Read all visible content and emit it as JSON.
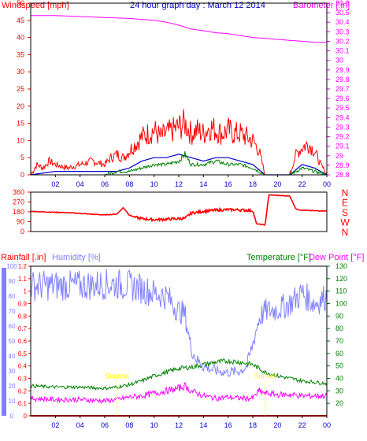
{
  "colors": {
    "frame": "#000000",
    "wind": "#ff0000",
    "windAvg": "#0000cc",
    "gust": "#008000",
    "baro": "#ff00ff",
    "direction": "#ff0000",
    "humidity": "#8080ff",
    "temperature": "#008000",
    "dewpoint": "#ff00ff",
    "rain": "#ff0000",
    "sun": "#ffff00",
    "title": "#0000cc"
  },
  "chart_data": [
    {
      "type": "line",
      "panel": "wind-baro",
      "title": "24 hour graph day : March 12 2014",
      "left_axis_label": "Windspeed [mph]",
      "right_axis_label": "Barometer [.in]",
      "left_ticks": [
        "0",
        "5",
        "10",
        "15",
        "20",
        "25",
        "30",
        "35",
        "40",
        "45",
        "50"
      ],
      "left_range": [
        0,
        50
      ],
      "right_ticks": [
        "28.8",
        "28.9",
        "29",
        "29.1",
        "29.2",
        "29.3",
        "29.4",
        "29.5",
        "29.6",
        "29.7",
        "29.8",
        "29.9",
        "30",
        "30.1",
        "30.2",
        "30.3",
        "30.4",
        "30.5",
        "30.6"
      ],
      "right_range": [
        28.8,
        30.6
      ],
      "x_ticks": [
        "02",
        "04",
        "06",
        "08",
        "10",
        "12",
        "14",
        "16",
        "18",
        "20",
        "22",
        "00"
      ],
      "x_range": [
        0,
        24
      ],
      "series": [
        {
          "role": "barometer",
          "axis": "right",
          "x": [
            0,
            2,
            4,
            6,
            8,
            9,
            10,
            11,
            12,
            13,
            14,
            15,
            16,
            17,
            18,
            19,
            20,
            21,
            22,
            23,
            24
          ],
          "y": [
            30.47,
            30.47,
            30.46,
            30.45,
            30.44,
            30.43,
            30.42,
            30.4,
            30.37,
            30.33,
            30.31,
            30.29,
            30.28,
            30.26,
            30.24,
            30.23,
            30.22,
            30.21,
            30.2,
            30.19,
            30.19
          ]
        },
        {
          "role": "wind-peak",
          "axis": "left",
          "x": [
            0,
            0.5,
            1,
            1.5,
            2,
            3,
            4,
            5,
            6,
            6.5,
            7,
            7.5,
            8,
            8.5,
            9,
            9.5,
            10,
            10.5,
            11,
            11.5,
            12,
            12.5,
            13,
            13.5,
            14,
            14.5,
            15,
            15.5,
            16,
            16.5,
            17,
            17.5,
            18,
            18.5,
            19,
            20,
            21,
            21.5,
            22,
            22.5,
            23,
            23.5,
            24
          ],
          "y": [
            0,
            3,
            2,
            4,
            3,
            2,
            3,
            4,
            3,
            5,
            6,
            5,
            7,
            9,
            11,
            12,
            13,
            11,
            12,
            13,
            14,
            15,
            12,
            13,
            12,
            14,
            13,
            12,
            13,
            12,
            12,
            11,
            10,
            7,
            0,
            0,
            0,
            6,
            8,
            9,
            7,
            3,
            0
          ]
        },
        {
          "role": "wind-average",
          "axis": "left",
          "x": [
            0,
            2,
            4,
            6,
            7,
            8,
            9,
            10,
            11,
            12,
            13,
            14,
            15,
            16,
            17,
            18,
            19,
            20,
            21,
            22,
            23,
            24
          ],
          "y": [
            0,
            1,
            1,
            1,
            1,
            2,
            4,
            5,
            5,
            6,
            5,
            4,
            5,
            5,
            4,
            3,
            0,
            0,
            0,
            3,
            2,
            0
          ]
        },
        {
          "role": "wind-gust",
          "axis": "left",
          "x": [
            0,
            2,
            4,
            6,
            7,
            8,
            9,
            10,
            11,
            12,
            12.5,
            13,
            14,
            15,
            16,
            17,
            18,
            19,
            20,
            21,
            22,
            23,
            24
          ],
          "y": [
            0,
            0,
            0,
            0,
            1,
            1,
            2,
            3,
            3,
            4,
            6,
            3,
            3,
            4,
            3,
            3,
            2,
            0,
            0,
            0,
            2,
            1,
            0
          ]
        }
      ]
    },
    {
      "type": "line",
      "panel": "direction",
      "left_ticks": [
        "0",
        "90",
        "180",
        "270",
        "360"
      ],
      "left_range": [
        0,
        360
      ],
      "right_ticks": [
        "N",
        "W",
        "S",
        "E",
        "N"
      ],
      "x_range": [
        0,
        24
      ],
      "series": [
        {
          "role": "wind-direction",
          "x": [
            0,
            1,
            2,
            3,
            4,
            5,
            6,
            7,
            7.2,
            7.5,
            8,
            8.5,
            9,
            10,
            11,
            12,
            12.5,
            13,
            14,
            15,
            16,
            17,
            18,
            18.3,
            19,
            19.3,
            20,
            21,
            21.5,
            22,
            23,
            24
          ],
          "y": [
            185,
            180,
            176,
            172,
            166,
            158,
            152,
            160,
            185,
            218,
            150,
            130,
            118,
            108,
            112,
            118,
            120,
            168,
            185,
            195,
            200,
            198,
            190,
            70,
            60,
            335,
            330,
            325,
            205,
            195,
            190,
            188
          ]
        }
      ]
    },
    {
      "type": "line",
      "panel": "rain-humidity-temp",
      "left_axis_label": "Rainfall [.in]",
      "left2_axis_label": "Humidity [%]",
      "right_axis_label": "Temperature [°F]",
      "right2_axis_label": "Dew Point [°F]",
      "rain_ticks": [
        "0",
        "0.1",
        "0.2",
        "0.3",
        "0.4",
        "0.5",
        "0.6",
        "0.7",
        "0.8",
        "0.9",
        "1",
        "1.1",
        "1.2"
      ],
      "rain_range": [
        0,
        1.2
      ],
      "humidity_ticks": [
        "0",
        "10",
        "20",
        "30",
        "40",
        "50",
        "60",
        "70",
        "80",
        "90",
        "100"
      ],
      "humidity_range": [
        0,
        100
      ],
      "temp_ticks": [
        "20",
        "30",
        "40",
        "50",
        "60",
        "70",
        "80",
        "90",
        "100",
        "110",
        "120",
        "130"
      ],
      "temp_range": [
        10,
        130
      ],
      "x_ticks": [
        "02",
        "04",
        "06",
        "08",
        "10",
        "12",
        "14",
        "16",
        "18",
        "20",
        "22",
        "00"
      ],
      "x_range": [
        0,
        24
      ],
      "annotations": [
        {
          "text": "Sunrise",
          "x": 7.0
        },
        {
          "text": "Sunset",
          "x": 19.0
        }
      ],
      "series": [
        {
          "role": "humidity",
          "axis": "humidity",
          "x": [
            0,
            2,
            4,
            6,
            7,
            8,
            9,
            10,
            11,
            12,
            12.5,
            13,
            13.5,
            14,
            15,
            16,
            17,
            17.5,
            18,
            18.5,
            19,
            20,
            21,
            22,
            23,
            24
          ],
          "y": [
            87,
            87,
            87,
            88,
            88,
            87,
            85,
            82,
            80,
            70,
            68,
            45,
            37,
            33,
            30,
            29,
            30,
            33,
            48,
            65,
            70,
            71,
            75,
            82,
            75,
            80
          ]
        },
        {
          "role": "temperature",
          "axis": "temp",
          "x": [
            0,
            2,
            4,
            6,
            7,
            8,
            9,
            10,
            11,
            12,
            13,
            14,
            15,
            16,
            17,
            18,
            19,
            20,
            21,
            22,
            23,
            24
          ],
          "y": [
            34,
            33,
            33,
            32,
            33,
            35,
            38,
            42,
            45,
            48,
            49,
            51,
            53,
            54,
            53,
            51,
            45,
            42,
            40,
            38,
            37,
            36
          ]
        },
        {
          "role": "dew-point",
          "axis": "temp",
          "x": [
            0,
            2,
            4,
            6,
            7,
            8,
            9,
            10,
            11,
            12,
            12.5,
            13,
            13.5,
            14,
            15,
            16,
            17,
            18,
            18.5,
            19,
            20,
            21,
            22,
            23,
            24
          ],
          "y": [
            24,
            23,
            23,
            22,
            23,
            25,
            26,
            28,
            30,
            32,
            34,
            30,
            28,
            26,
            24,
            25,
            24,
            24,
            30,
            28,
            27,
            27,
            26,
            26,
            26
          ]
        },
        {
          "role": "rainfall",
          "axis": "rain",
          "x": [
            0,
            24
          ],
          "y": [
            0,
            0
          ]
        }
      ]
    }
  ]
}
